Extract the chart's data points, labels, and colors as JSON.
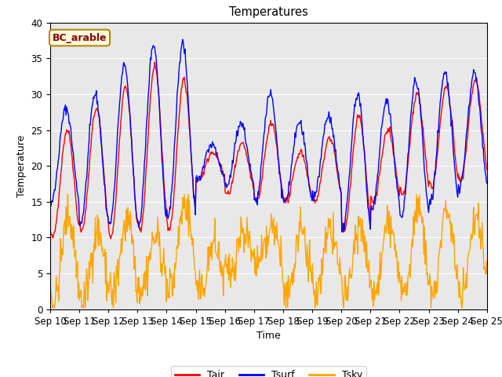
{
  "title": "Temperatures",
  "xlabel": "Time",
  "ylabel": "Temperature",
  "annotation": "BC_arable",
  "legend_labels": [
    "Tair",
    "Tsurf",
    "Tsky"
  ],
  "colors": [
    "red",
    "blue",
    "orange"
  ],
  "ylim": [
    0,
    40
  ],
  "background_color": "#e8e8e8",
  "fig_background": "#ffffff",
  "n_points_per_day": 48,
  "start_day": 10,
  "end_day": 25,
  "tair_peaks": [
    25,
    28,
    31,
    34,
    32,
    22,
    23,
    26,
    22,
    24,
    27,
    25,
    30,
    31,
    32
  ],
  "tair_troughs": [
    10,
    11,
    10,
    11,
    11,
    18,
    16,
    15,
    15,
    15,
    11,
    15,
    16,
    17,
    18
  ],
  "tsurf_peak_extra": [
    3,
    2,
    3,
    3,
    5,
    1,
    3,
    4,
    4,
    3,
    3,
    4,
    2,
    2,
    1
  ],
  "tsurf_trough_extra": [
    5,
    1,
    2,
    1,
    2,
    0,
    1,
    0,
    0,
    1,
    0,
    -1,
    -3,
    -2,
    -1
  ],
  "tsky_peaks": [
    13,
    11,
    12,
    10,
    15,
    9,
    11,
    11,
    11,
    11,
    12,
    12,
    14,
    14,
    13
  ],
  "tsky_troughs": [
    1,
    1,
    2,
    3,
    3,
    2,
    5,
    6,
    2,
    2,
    2,
    2,
    2,
    2,
    2
  ]
}
